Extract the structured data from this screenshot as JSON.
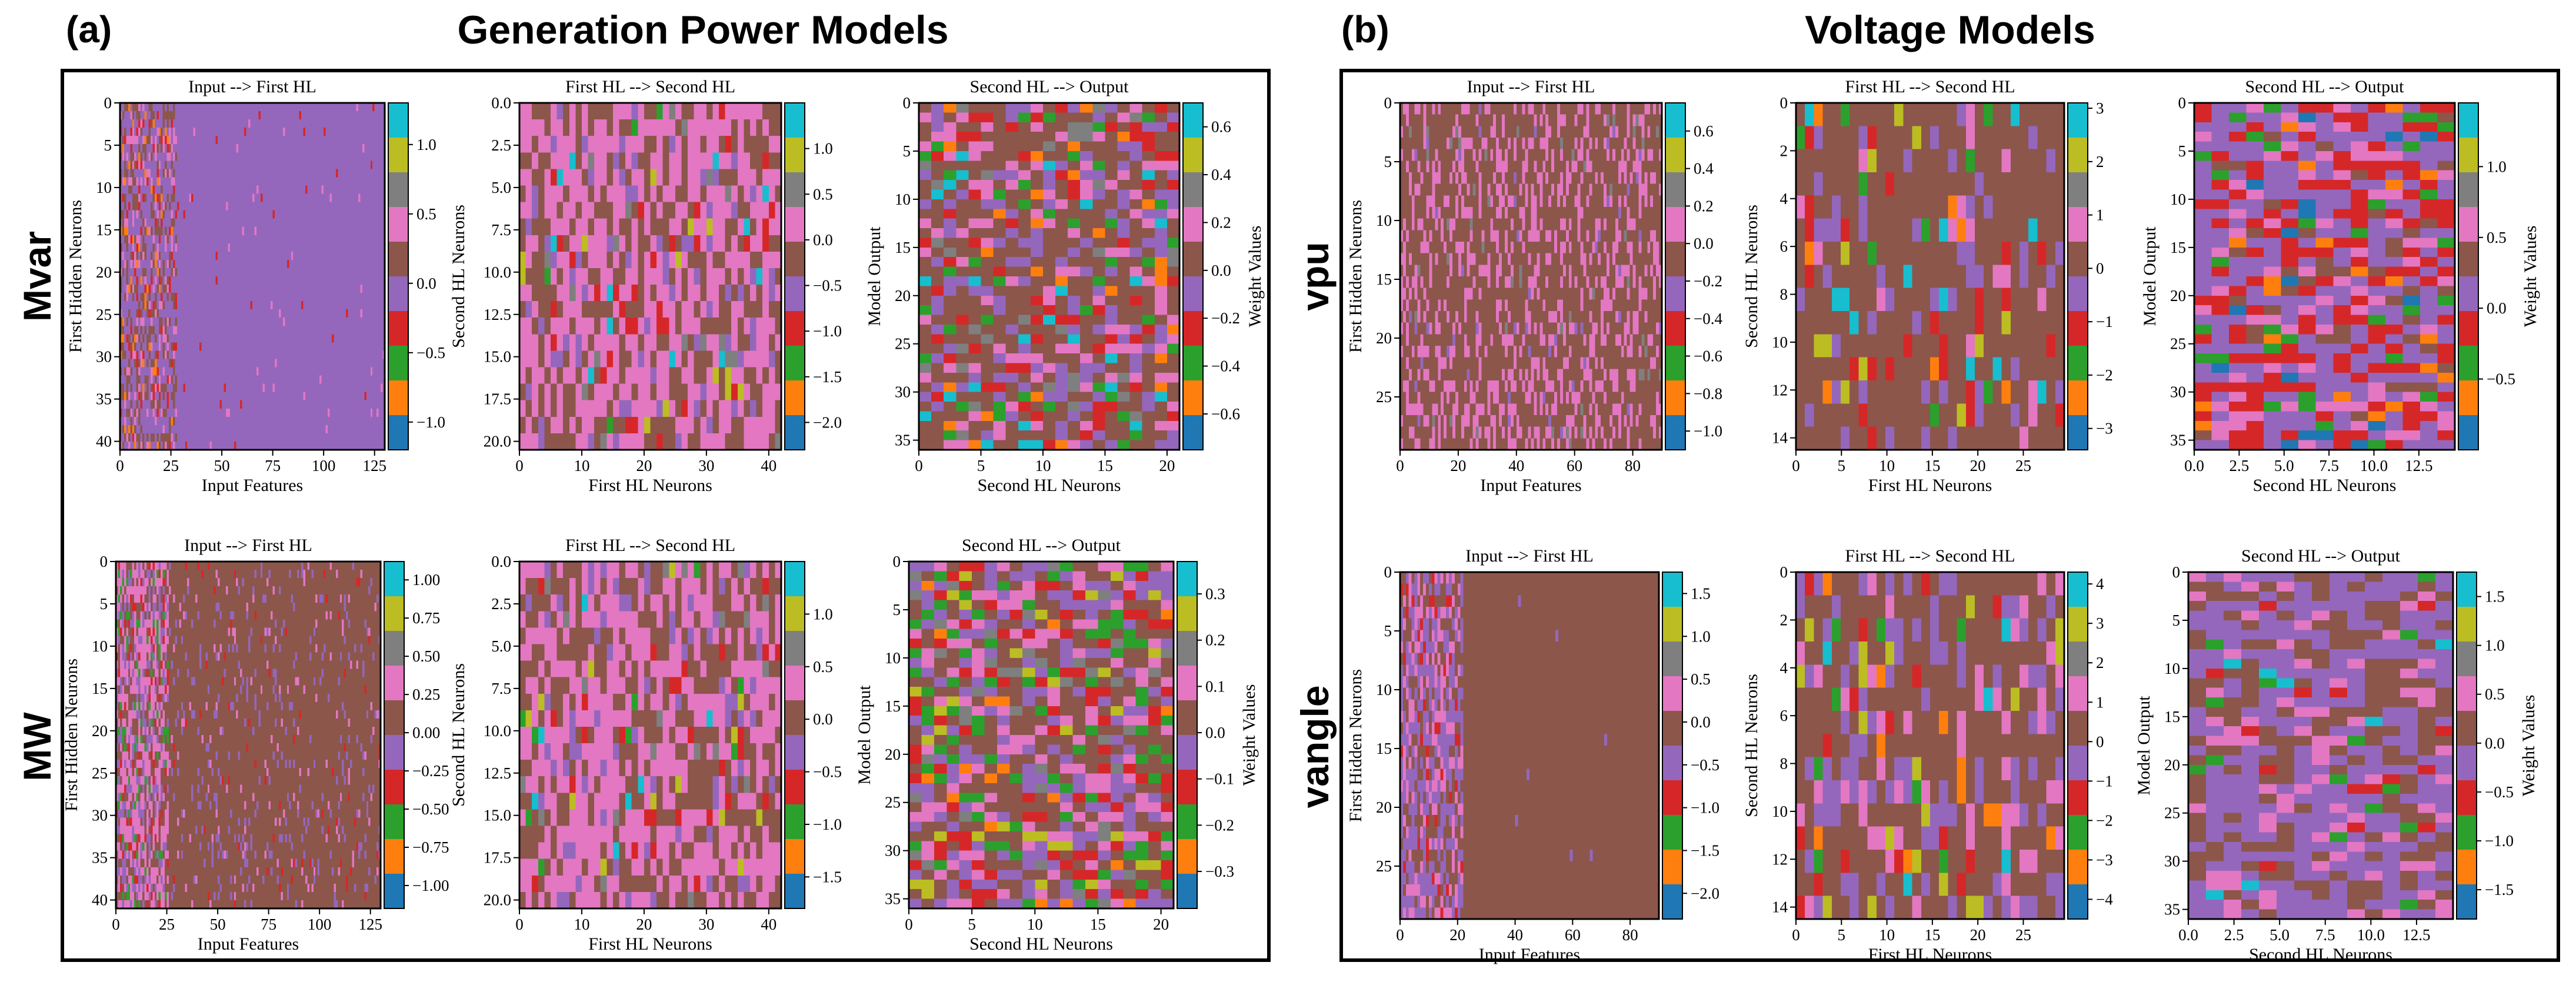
{
  "panels": [
    {
      "letter": "(a)",
      "title": "Generation Power Models",
      "rows": [
        "Mvar",
        "MW"
      ]
    },
    {
      "letter": "(b)",
      "title": "Voltage Models",
      "rows": [
        "vpu",
        "vangle"
      ]
    }
  ],
  "colors": {
    "tab10": [
      "#1f77b4",
      "#ff7f0e",
      "#2ca02c",
      "#d62728",
      "#9467bd",
      "#8c564b",
      "#e377c2",
      "#7f7f7f",
      "#bcbd22",
      "#17becf"
    ],
    "frame": "#000000"
  },
  "chart_data": [
    {
      "id": "mvar-1",
      "type": "heatmap",
      "panel": "a",
      "row": "Mvar",
      "title": "Input --> First HL",
      "xlabel": "Input Features",
      "ylabel": "First Hidden Neurons",
      "cbar_label": "",
      "x_ticks": [
        "0",
        "25",
        "50",
        "75",
        "100",
        "125"
      ],
      "x_tick_vals": [
        0,
        25,
        50,
        75,
        100,
        125
      ],
      "xlim": [
        0,
        130
      ],
      "y_ticks": [
        "0",
        "5",
        "10",
        "15",
        "20",
        "25",
        "30",
        "35",
        "40"
      ],
      "y_tick_vals": [
        0,
        5,
        10,
        15,
        20,
        25,
        30,
        35,
        40
      ],
      "ylim": [
        0,
        41
      ],
      "cbar_ticks": [
        "1.0",
        "0.5",
        "0.0",
        "−0.5",
        "−1.0"
      ],
      "cbar_tick_vals": [
        1.0,
        0.5,
        0.0,
        -0.5,
        -1.0
      ],
      "cbar_range": [
        -1.2,
        1.3
      ],
      "grid": [
        130,
        42
      ],
      "pattern": "input-purple"
    },
    {
      "id": "mvar-2",
      "type": "heatmap",
      "panel": "a",
      "row": "Mvar",
      "title": "First HL --> Second HL",
      "xlabel": "First HL Neurons",
      "ylabel": "Second HL Neurons",
      "cbar_label": "",
      "x_ticks": [
        "0",
        "10",
        "20",
        "30",
        "40"
      ],
      "x_tick_vals": [
        0,
        10,
        20,
        30,
        40
      ],
      "xlim": [
        0,
        42
      ],
      "y_ticks": [
        "0.0",
        "2.5",
        "5.0",
        "7.5",
        "10.0",
        "12.5",
        "15.0",
        "17.5",
        "20.0"
      ],
      "y_tick_vals": [
        0,
        2.5,
        5,
        7.5,
        10,
        12.5,
        15,
        17.5,
        20
      ],
      "ylim": [
        0,
        20.5
      ],
      "cbar_ticks": [
        "1.0",
        "0.5",
        "0.0",
        "−0.5",
        "−1.0",
        "−1.5",
        "−2.0"
      ],
      "cbar_tick_vals": [
        1.0,
        0.5,
        0.0,
        -0.5,
        -1.0,
        -1.5,
        -2.0
      ],
      "cbar_range": [
        -2.3,
        1.5
      ],
      "grid": [
        42,
        21
      ],
      "pattern": "pink-brown"
    },
    {
      "id": "mvar-3",
      "type": "heatmap",
      "panel": "a",
      "row": "Mvar",
      "title": "Second HL --> Output",
      "xlabel": "Second HL Neurons",
      "ylabel": "Model Output",
      "cbar_label": "Weight Values",
      "x_ticks": [
        "0",
        "5",
        "10",
        "15",
        "20"
      ],
      "x_tick_vals": [
        0,
        5,
        10,
        15,
        20
      ],
      "xlim": [
        0,
        21
      ],
      "y_ticks": [
        "0",
        "5",
        "10",
        "15",
        "20",
        "25",
        "30",
        "35"
      ],
      "y_tick_vals": [
        0,
        5,
        10,
        15,
        20,
        25,
        30,
        35
      ],
      "ylim": [
        0,
        36
      ],
      "cbar_ticks": [
        "0.6",
        "0.4",
        "0.2",
        "0.0",
        "−0.2",
        "−0.4",
        "−0.6"
      ],
      "cbar_tick_vals": [
        0.6,
        0.4,
        0.2,
        0.0,
        -0.2,
        -0.4,
        -0.6
      ],
      "cbar_range": [
        -0.75,
        0.7
      ],
      "grid": [
        21,
        36
      ],
      "pattern": "mixed-brown"
    },
    {
      "id": "mw-1",
      "type": "heatmap",
      "panel": "a",
      "row": "MW",
      "title": "Input --> First HL",
      "xlabel": "Input Features",
      "ylabel": "First Hidden Neurons",
      "cbar_label": "",
      "x_ticks": [
        "0",
        "25",
        "50",
        "75",
        "100",
        "125"
      ],
      "x_tick_vals": [
        0,
        25,
        50,
        75,
        100,
        125
      ],
      "xlim": [
        0,
        130
      ],
      "y_ticks": [
        "0",
        "5",
        "10",
        "15",
        "20",
        "25",
        "30",
        "35",
        "40"
      ],
      "y_tick_vals": [
        0,
        5,
        10,
        15,
        20,
        25,
        30,
        35,
        40
      ],
      "ylim": [
        0,
        41
      ],
      "cbar_ticks": [
        "1.00",
        "0.75",
        "0.50",
        "0.25",
        "0.00",
        "−0.25",
        "−0.50",
        "−0.75",
        "−1.00"
      ],
      "cbar_tick_vals": [
        1.0,
        0.75,
        0.5,
        0.25,
        0.0,
        -0.25,
        -0.5,
        -0.75,
        -1.0
      ],
      "cbar_range": [
        -1.15,
        1.12
      ],
      "grid": [
        130,
        42
      ],
      "pattern": "input-brown"
    },
    {
      "id": "mw-2",
      "type": "heatmap",
      "panel": "a",
      "row": "MW",
      "title": "First HL --> Second HL",
      "xlabel": "First HL Neurons",
      "ylabel": "Second HL Neurons",
      "cbar_label": "",
      "x_ticks": [
        "0",
        "10",
        "20",
        "30",
        "40"
      ],
      "x_tick_vals": [
        0,
        10,
        20,
        30,
        40
      ],
      "xlim": [
        0,
        42
      ],
      "y_ticks": [
        "0.0",
        "2.5",
        "5.0",
        "7.5",
        "10.0",
        "12.5",
        "15.0",
        "17.5",
        "20.0"
      ],
      "y_tick_vals": [
        0,
        2.5,
        5,
        7.5,
        10,
        12.5,
        15,
        17.5,
        20
      ],
      "ylim": [
        0,
        20.5
      ],
      "cbar_ticks": [
        "1.0",
        "0.5",
        "0.0",
        "−0.5",
        "−1.0",
        "−1.5"
      ],
      "cbar_tick_vals": [
        1.0,
        0.5,
        0.0,
        -0.5,
        -1.0,
        -1.5
      ],
      "cbar_range": [
        -1.8,
        1.5
      ],
      "grid": [
        42,
        21
      ],
      "pattern": "pink-brown"
    },
    {
      "id": "mw-3",
      "type": "heatmap",
      "panel": "a",
      "row": "MW",
      "title": "Second HL --> Output",
      "xlabel": "Second HL Neurons",
      "ylabel": "Model Output",
      "cbar_label": "Weight Values",
      "x_ticks": [
        "0",
        "5",
        "10",
        "15",
        "20"
      ],
      "x_tick_vals": [
        0,
        5,
        10,
        15,
        20
      ],
      "xlim": [
        0,
        21
      ],
      "y_ticks": [
        "0",
        "5",
        "10",
        "15",
        "20",
        "25",
        "30",
        "35"
      ],
      "y_tick_vals": [
        0,
        5,
        10,
        15,
        20,
        25,
        30,
        35
      ],
      "ylim": [
        0,
        36
      ],
      "cbar_ticks": [
        "0.3",
        "0.2",
        "0.1",
        "0.0",
        "−0.1",
        "−0.2",
        "−0.3"
      ],
      "cbar_tick_vals": [
        0.3,
        0.2,
        0.1,
        0.0,
        -0.1,
        -0.2,
        -0.3
      ],
      "cbar_range": [
        -0.38,
        0.37
      ],
      "grid": [
        21,
        36
      ],
      "pattern": "colorful"
    },
    {
      "id": "vpu-1",
      "type": "heatmap",
      "panel": "b",
      "row": "vpu",
      "title": "Input --> First HL",
      "xlabel": "Input Features",
      "ylabel": "First Hidden Neurons",
      "cbar_label": "",
      "x_ticks": [
        "0",
        "20",
        "40",
        "60",
        "80"
      ],
      "x_tick_vals": [
        0,
        20,
        40,
        60,
        80
      ],
      "xlim": [
        0,
        90
      ],
      "y_ticks": [
        "0",
        "5",
        "10",
        "15",
        "20",
        "25"
      ],
      "y_tick_vals": [
        0,
        5,
        10,
        15,
        20,
        25
      ],
      "ylim": [
        0,
        29.5
      ],
      "cbar_ticks": [
        "0.6",
        "0.4",
        "0.2",
        "0.0",
        "−0.2",
        "−0.4",
        "−0.6",
        "−0.8",
        "−1.0"
      ],
      "cbar_tick_vals": [
        0.6,
        0.4,
        0.2,
        0.0,
        -0.2,
        -0.4,
        -0.6,
        -0.8,
        -1.0
      ],
      "cbar_range": [
        -1.1,
        0.75
      ],
      "grid": [
        90,
        30
      ],
      "pattern": "speckle-brown"
    },
    {
      "id": "vpu-2",
      "type": "heatmap",
      "panel": "b",
      "row": "vpu",
      "title": "First HL --> Second HL",
      "xlabel": "First HL Neurons",
      "ylabel": "Second HL Neurons",
      "cbar_label": "",
      "x_ticks": [
        "0",
        "5",
        "10",
        "15",
        "20",
        "25"
      ],
      "x_tick_vals": [
        0,
        5,
        10,
        15,
        20,
        25
      ],
      "xlim": [
        0,
        29.5
      ],
      "y_ticks": [
        "0",
        "2",
        "4",
        "6",
        "8",
        "10",
        "12",
        "14"
      ],
      "y_tick_vals": [
        0,
        2,
        4,
        6,
        8,
        10,
        12,
        14
      ],
      "ylim": [
        0,
        14.5
      ],
      "cbar_ticks": [
        "3",
        "2",
        "1",
        "0",
        "−1",
        "−2",
        "−3"
      ],
      "cbar_tick_vals": [
        3,
        2,
        1,
        0,
        -1,
        -2,
        -3
      ],
      "cbar_range": [
        -3.4,
        3.1
      ],
      "grid": [
        30,
        15
      ],
      "pattern": "brown-sparse"
    },
    {
      "id": "vpu-3",
      "type": "heatmap",
      "panel": "b",
      "row": "vpu",
      "title": "Second HL --> Output",
      "xlabel": "Second HL Neurons",
      "ylabel": "Model Output",
      "cbar_label": "Weight Values",
      "x_ticks": [
        "0.0",
        "2.5",
        "5.0",
        "7.5",
        "10.0",
        "12.5"
      ],
      "x_tick_vals": [
        0,
        2.5,
        5,
        7.5,
        10,
        12.5
      ],
      "xlim": [
        0,
        14.5
      ],
      "y_ticks": [
        "0",
        "5",
        "10",
        "15",
        "20",
        "25",
        "30",
        "35"
      ],
      "y_tick_vals": [
        0,
        5,
        10,
        15,
        20,
        25,
        30,
        35
      ],
      "ylim": [
        0,
        36
      ],
      "cbar_ticks": [
        "1.0",
        "0.5",
        "0.0",
        "−0.5"
      ],
      "cbar_tick_vals": [
        1.0,
        0.5,
        0.0,
        -0.5
      ],
      "cbar_range": [
        -1.0,
        1.45
      ],
      "grid": [
        15,
        36
      ],
      "pattern": "red-purple"
    },
    {
      "id": "vang-1",
      "type": "heatmap",
      "panel": "b",
      "row": "vangle",
      "title": "Input --> First HL",
      "xlabel": "Input Features",
      "ylabel": "First Hidden Neurons",
      "cbar_label": "",
      "x_ticks": [
        "0",
        "20",
        "40",
        "60",
        "80"
      ],
      "x_tick_vals": [
        0,
        20,
        40,
        60,
        80
      ],
      "xlim": [
        0,
        90
      ],
      "y_ticks": [
        "0",
        "5",
        "10",
        "15",
        "20",
        "25"
      ],
      "y_tick_vals": [
        0,
        5,
        10,
        15,
        20,
        25
      ],
      "ylim": [
        0,
        29.5
      ],
      "cbar_ticks": [
        "1.5",
        "1.0",
        "0.5",
        "0.0",
        "−0.5",
        "−1.0",
        "−1.5",
        "−2.0"
      ],
      "cbar_tick_vals": [
        1.5,
        1.0,
        0.5,
        0.0,
        -0.5,
        -1.0,
        -1.5,
        -2.0
      ],
      "cbar_range": [
        -2.3,
        1.75
      ],
      "grid": [
        90,
        30
      ],
      "pattern": "input-left"
    },
    {
      "id": "vang-2",
      "type": "heatmap",
      "panel": "b",
      "row": "vangle",
      "title": "First HL --> Second HL",
      "xlabel": "First HL Neurons",
      "ylabel": "Second HL Neurons",
      "cbar_label": "",
      "x_ticks": [
        "0",
        "5",
        "10",
        "15",
        "20",
        "25"
      ],
      "x_tick_vals": [
        0,
        5,
        10,
        15,
        20,
        25
      ],
      "xlim": [
        0,
        29.5
      ],
      "y_ticks": [
        "0",
        "2",
        "4",
        "6",
        "8",
        "10",
        "12",
        "14"
      ],
      "y_tick_vals": [
        0,
        2,
        4,
        6,
        8,
        10,
        12,
        14
      ],
      "ylim": [
        0,
        14.5
      ],
      "cbar_ticks": [
        "4",
        "3",
        "2",
        "1",
        "0",
        "−1",
        "−2",
        "−3",
        "−4"
      ],
      "cbar_tick_vals": [
        4,
        3,
        2,
        1,
        0,
        -1,
        -2,
        -3,
        -4
      ],
      "cbar_range": [
        -4.5,
        4.3
      ],
      "grid": [
        30,
        15
      ],
      "pattern": "brown-rows"
    },
    {
      "id": "vang-3",
      "type": "heatmap",
      "panel": "b",
      "row": "vangle",
      "title": "Second HL --> Output",
      "xlabel": "Second HL Neurons",
      "ylabel": "Model Output",
      "cbar_label": "Weight Values",
      "x_ticks": [
        "0.0",
        "2.5",
        "5.0",
        "7.5",
        "10.0",
        "12.5"
      ],
      "x_tick_vals": [
        0,
        2.5,
        5,
        7.5,
        10,
        12.5
      ],
      "xlim": [
        0,
        14.5
      ],
      "y_ticks": [
        "0",
        "5",
        "10",
        "15",
        "20",
        "25",
        "30",
        "35"
      ],
      "y_tick_vals": [
        0,
        5,
        10,
        15,
        20,
        25,
        30,
        35
      ],
      "ylim": [
        0,
        36
      ],
      "cbar_ticks": [
        "1.5",
        "1.0",
        "0.5",
        "0.0",
        "−0.5",
        "−1.0",
        "−1.5"
      ],
      "cbar_tick_vals": [
        1.5,
        1.0,
        0.5,
        0.0,
        -0.5,
        -1.0,
        -1.5
      ],
      "cbar_range": [
        -1.8,
        1.75
      ],
      "grid": [
        15,
        36
      ],
      "pattern": "purple-mixed"
    }
  ]
}
